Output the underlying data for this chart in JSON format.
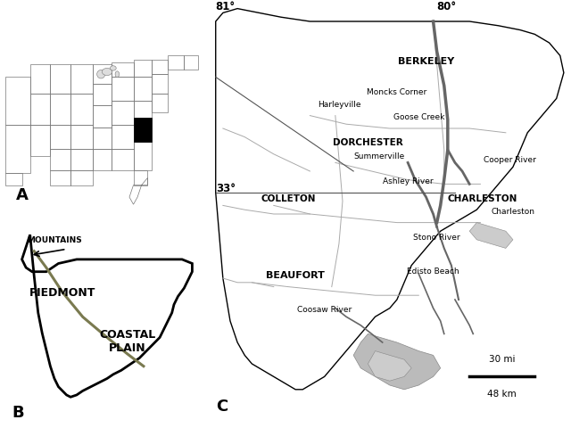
{
  "fig_width": 6.4,
  "fig_height": 4.8,
  "background": "#ffffff",
  "panel_A_label": "A",
  "panel_B_label": "B",
  "panel_C_label": "C",
  "piedmont_line_color": "#7a7a50",
  "county_line_color": "#aaaaaa",
  "river_color": "#888888",
  "river_color_dark": "#666666",
  "text_color": "#000000",
  "sc_fill": "#ffffff",
  "sc_edge": "#000000",
  "ref_line_color": "#555555",
  "scale_line_color": "#000000"
}
